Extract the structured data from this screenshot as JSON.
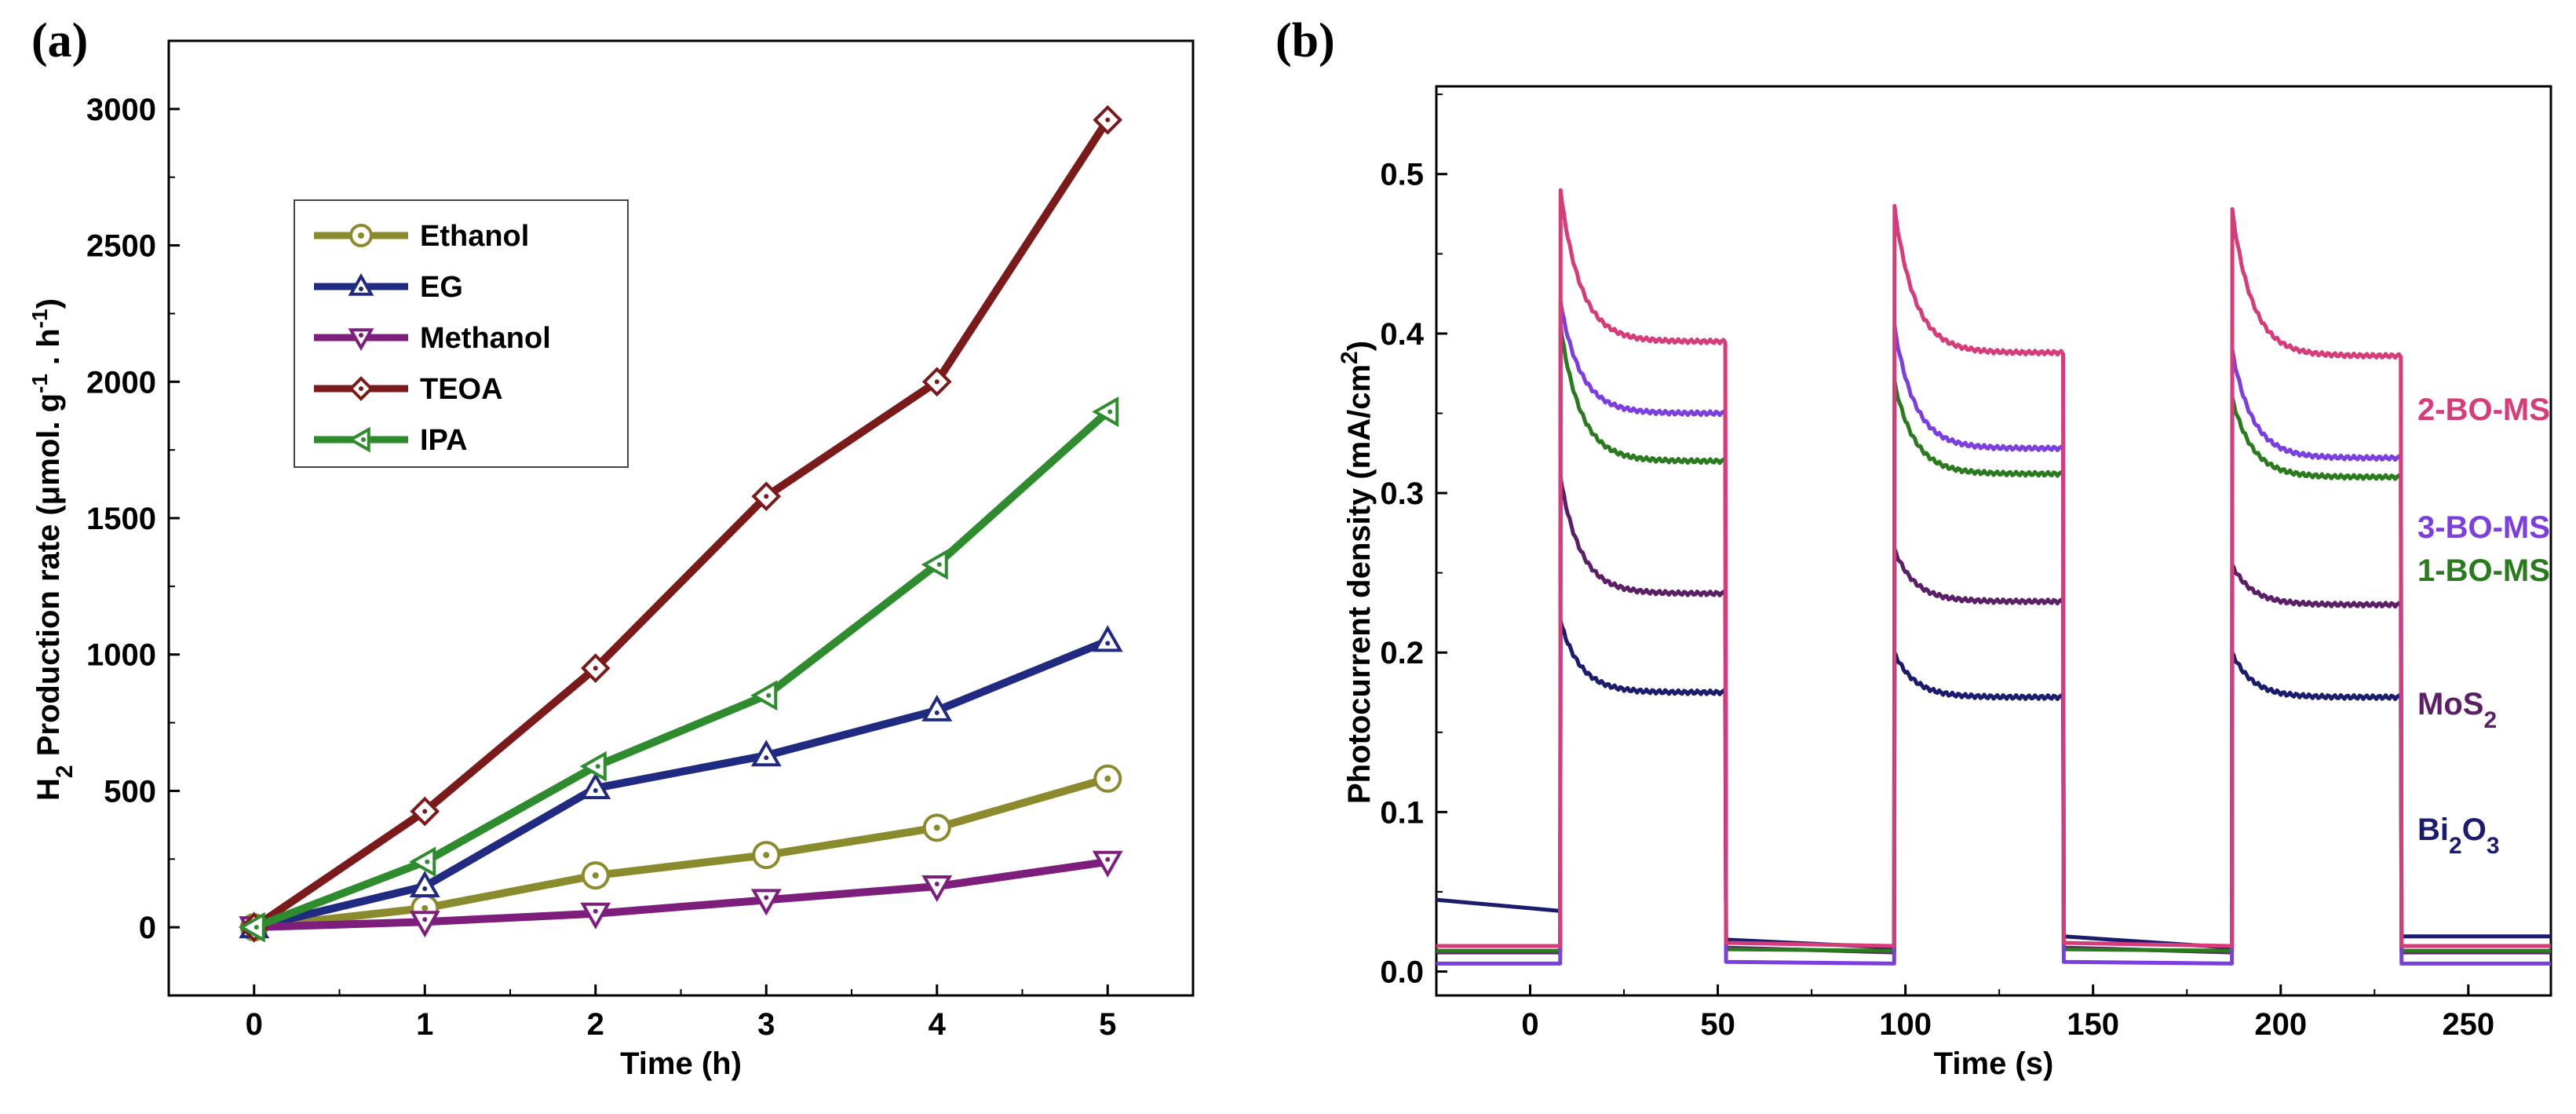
{
  "chart_data": [
    {
      "panel": "(a)",
      "type": "line",
      "xlabel": "Time (h)",
      "ylabel": {
        "prefix": "H",
        "prefix_sub": "2",
        "main": " Production rate (",
        "mu": "μ",
        "unit": "mol. g",
        "unit_sup1": "-1",
        "dot": " . h",
        "unit_sup2": "-1",
        "close": ")"
      },
      "xlim": [
        -0.5,
        5.5
      ],
      "ylim": [
        -250,
        3250
      ],
      "xticks": [
        0,
        1,
        2,
        3,
        4,
        5
      ],
      "yticks": [
        0,
        500,
        1000,
        1500,
        2000,
        2500,
        3000
      ],
      "legend_position": "top-left",
      "x": [
        0,
        1,
        2,
        3,
        4,
        5
      ],
      "series": [
        {
          "name": "Ethanol",
          "marker": "circle-dot",
          "color": "#8b8b2e",
          "values": [
            0,
            70,
            190,
            265,
            365,
            545
          ]
        },
        {
          "name": "EG",
          "marker": "triangle-up",
          "color": "#1f2a80",
          "values": [
            0,
            150,
            510,
            630,
            795,
            1050
          ]
        },
        {
          "name": "Methanol",
          "marker": "triangle-down",
          "color": "#7d1e7d",
          "values": [
            0,
            20,
            50,
            100,
            150,
            240
          ]
        },
        {
          "name": "TEOA",
          "marker": "diamond",
          "color": "#7a1a1a",
          "values": [
            0,
            425,
            950,
            1580,
            2000,
            2960
          ]
        },
        {
          "name": "IPA",
          "marker": "triangle-left",
          "color": "#2e8b2e",
          "values": [
            0,
            240,
            590,
            850,
            1330,
            1890
          ]
        }
      ]
    },
    {
      "panel": "(b)",
      "type": "line",
      "xlabel": "Time (s)",
      "ylabel": {
        "main": "Photocurrent density (mA/cm",
        "sup": "2",
        "close": ")"
      },
      "xlim": [
        -25,
        272
      ],
      "ylim": [
        -0.015,
        0.555
      ],
      "xticks": [
        0,
        50,
        100,
        150,
        200,
        250
      ],
      "yticks": [
        0.0,
        0.1,
        0.2,
        0.3,
        0.4,
        0.5
      ],
      "on_intervals": [
        [
          8,
          52
        ],
        [
          97,
          142
        ],
        [
          187,
          232
        ]
      ],
      "series": [
        {
          "name": "Bi2O3",
          "label": {
            "main": "Bi",
            "s1": "2",
            "mid": "O",
            "s2": "3"
          },
          "color": "#1c1c6e",
          "dark": [
            0.045,
            0.038,
            0.02,
            0.015,
            0.022,
            0.015,
            0.022
          ],
          "peak": [
            0.22,
            0.2,
            0.2
          ],
          "steady": [
            0.175,
            0.172,
            0.172
          ]
        },
        {
          "name": "MoS2",
          "label": {
            "main": "MoS",
            "s1": "2"
          },
          "color": "#5a1f66",
          "dark": [
            0.012,
            0.012,
            0.015,
            0.012,
            0.015,
            0.012,
            0.012
          ],
          "peak": [
            0.31,
            0.265,
            0.255
          ],
          "steady": [
            0.237,
            0.232,
            0.23
          ]
        },
        {
          "name": "1-BO-MS",
          "label": {
            "main": "1-BO-MS"
          },
          "color": "#2a7a1e",
          "dark": [
            0.013,
            0.013,
            0.014,
            0.013,
            0.014,
            0.013,
            0.013
          ],
          "peak": [
            0.405,
            0.37,
            0.36
          ],
          "steady": [
            0.32,
            0.312,
            0.31
          ]
        },
        {
          "name": "3-BO-MS",
          "label": {
            "main": "3-BO-MS"
          },
          "color": "#7b3fe0",
          "dark": [
            0.005,
            0.005,
            0.006,
            0.005,
            0.006,
            0.005,
            0.005
          ],
          "peak": [
            0.42,
            0.405,
            0.39
          ],
          "steady": [
            0.35,
            0.328,
            0.322
          ]
        },
        {
          "name": "2-BO-MS",
          "label": {
            "main": "2-BO-MS"
          },
          "color": "#d63c7a",
          "dark": [
            0.016,
            0.016,
            0.018,
            0.016,
            0.018,
            0.016,
            0.016
          ],
          "peak": [
            0.49,
            0.48,
            0.478
          ],
          "steady": [
            0.395,
            0.388,
            0.386
          ]
        }
      ]
    }
  ],
  "panel_labels": [
    "(a)",
    "(b)"
  ]
}
